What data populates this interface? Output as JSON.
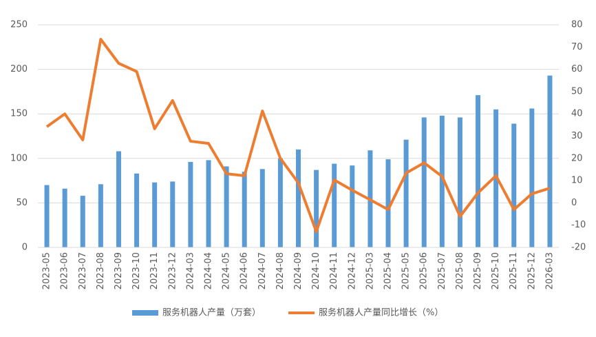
{
  "chart_data": {
    "type": "bar_line",
    "categories": [
      "2023-05",
      "2023-06",
      "2023-07",
      "2023-08",
      "2023-09",
      "2023-10",
      "2023-11",
      "2023-12",
      "2024-03",
      "2024-04",
      "2024-05",
      "2024-06",
      "2024-07",
      "2024-08",
      "2024-09",
      "2024-10",
      "2024-11",
      "2024-12",
      "2025-03",
      "2025-04",
      "2025-05",
      "2025-06",
      "2025-07",
      "2025-08",
      "2025-09",
      "2025-10",
      "2025-11",
      "2025-12",
      "2026-03"
    ],
    "series": [
      {
        "name": "服务机器人产量（万套）",
        "color": "#5b9bd5",
        "type": "bar",
        "values": [
          70,
          66,
          58,
          71,
          108,
          83,
          73,
          74,
          96,
          98,
          91,
          85,
          88,
          100,
          110,
          87,
          94,
          92,
          109,
          99,
          121,
          146,
          148,
          146,
          171,
          155,
          139,
          156,
          193
        ]
      },
      {
        "name": "服务机器人产量同比增长（%）",
        "color": "#ed7d31",
        "type": "line",
        "axis": "y2",
        "values": [
          34.2,
          40,
          28.3,
          73.5,
          62.7,
          59,
          33.3,
          46,
          27.7,
          26.7,
          13.1,
          12.2,
          41.3,
          20,
          9,
          -12.9,
          10.3,
          5.7,
          1.4,
          -3,
          13.4,
          18,
          11.9,
          -6.1,
          4.5,
          12.2,
          -3,
          4.1,
          6.6
        ]
      }
    ],
    "ylim": [
      0,
      250
    ],
    "yticks": [
      0,
      50,
      100,
      150,
      200,
      250
    ],
    "y2lim": [
      -20,
      80
    ],
    "y2ticks": [
      -20,
      -10,
      0,
      10,
      20,
      30,
      40,
      50,
      60,
      70,
      80
    ],
    "grid": true,
    "legend": "bottom"
  }
}
